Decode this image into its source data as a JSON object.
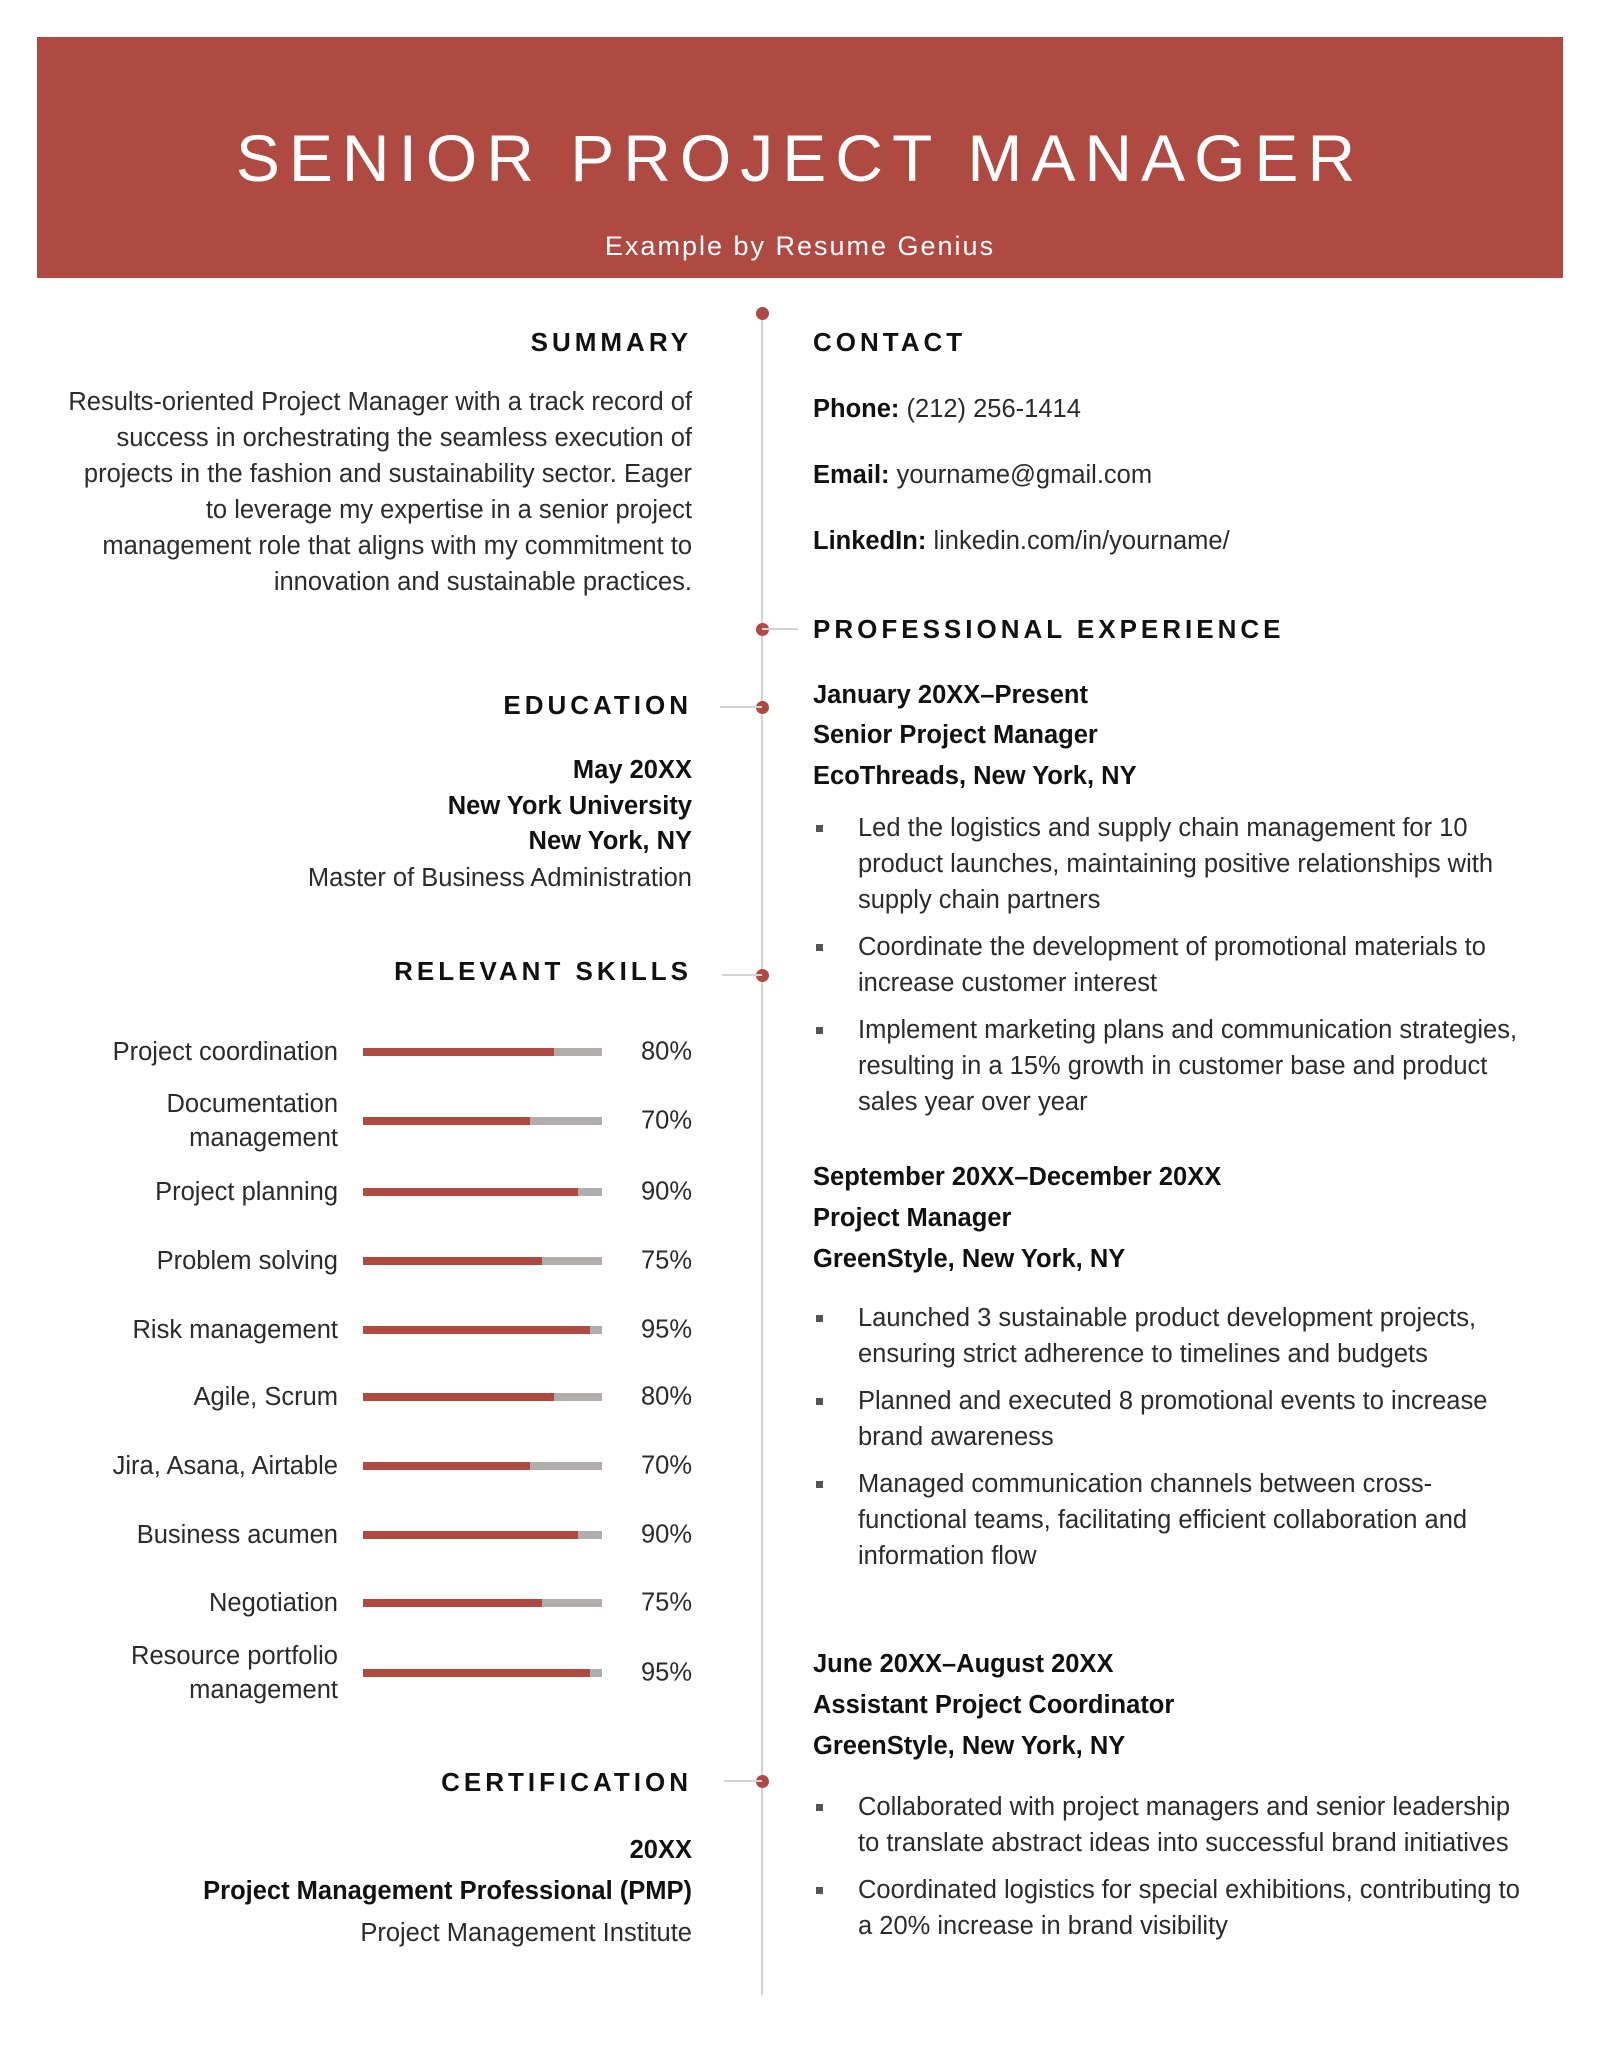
{
  "colors": {
    "accent": "#ae4a41",
    "bar_track": "#b1adad",
    "timeline": "#d3d3d3"
  },
  "header": {
    "title": "SENIOR PROJECT MANAGER",
    "subtitle": "Example by Resume Genius"
  },
  "summary": {
    "heading": "SUMMARY",
    "text": "Results-oriented Project Manager with a track record of success in orchestrating the seamless execution of projects in the fashion and sustainability sector. Eager to leverage my expertise in a senior project management role that aligns with my commitment to innovation and sustainable practices."
  },
  "education": {
    "heading": "EDUCATION",
    "date": "May 20XX",
    "school": "New York University",
    "location": "New York, NY",
    "degree": "Master of Business Administration"
  },
  "skills": {
    "heading": "RELEVANT SKILLS",
    "items": [
      {
        "label": "Project coordination",
        "percent": 80
      },
      {
        "label": "Documentation management",
        "percent": 70
      },
      {
        "label": "Project planning",
        "percent": 90
      },
      {
        "label": "Problem solving",
        "percent": 75
      },
      {
        "label": "Risk management",
        "percent": 95
      },
      {
        "label": "Agile, Scrum",
        "percent": 80
      },
      {
        "label": "Jira, Asana, Airtable",
        "percent": 70
      },
      {
        "label": "Business acumen",
        "percent": 90
      },
      {
        "label": "Negotiation",
        "percent": 75
      },
      {
        "label": "Resource portfolio management",
        "percent": 95
      }
    ]
  },
  "certification": {
    "heading": "CERTIFICATION",
    "date": "20XX",
    "name": "Project Management Professional (PMP)",
    "issuer": "Project Management Institute"
  },
  "contact": {
    "heading": "CONTACT",
    "phone_label": "Phone:",
    "phone": "(212) 256-1414",
    "email_label": "Email:",
    "email": "yourname@gmail.com",
    "linkedin_label": "LinkedIn:",
    "linkedin": "linkedin.com/in/yourname/"
  },
  "experience": {
    "heading": "PROFESSIONAL EXPERIENCE",
    "jobs": [
      {
        "dates": "January 20XX–Present",
        "title": "Senior Project Manager",
        "company": "EcoThreads, New York, NY",
        "bullets": [
          "Led the logistics and supply chain management for 10 product launches, maintaining positive relationships with supply chain partners",
          "Coordinate the development of promotional materials to increase customer interest",
          "Implement marketing plans and communication strategies, resulting in a 15% growth in customer base and product sales year over year"
        ]
      },
      {
        "dates": "September 20XX–December 20XX",
        "title": "Project Manager",
        "company": "GreenStyle, New York, NY",
        "bullets": [
          "Launched 3 sustainable product development projects, ensuring strict adherence to timelines and budgets",
          "Planned and executed 8 promotional events to increase brand awareness",
          "Managed communication channels between cross-functional teams, facilitating efficient collaboration and information flow"
        ]
      },
      {
        "dates": "June 20XX–August 20XX",
        "title": "Assistant Project Coordinator",
        "company": "GreenStyle, New York, NY",
        "bullets": [
          "Collaborated with project managers and senior leadership to translate abstract ideas into successful brand initiatives",
          "Coordinated logistics for special exhibitions, contributing to a 20% increase in brand visibility"
        ]
      }
    ]
  }
}
